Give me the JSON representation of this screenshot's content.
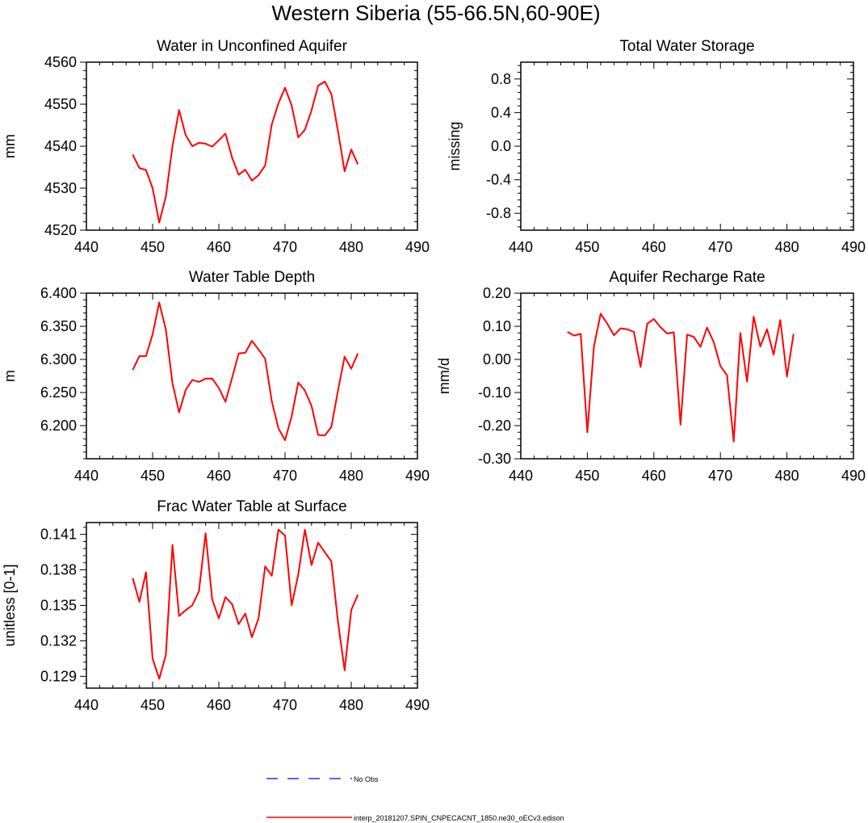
{
  "figure": {
    "title": "Western Siberia (55-66.5N,60-90E)"
  },
  "legend": {
    "items": [
      {
        "label": "No Obs",
        "color": "#0000ff",
        "style": "dashed"
      },
      {
        "label": "interp_20181207.SPIN_CNPECACNT_1850.ne30_oECv3.edison",
        "color": "#ff0000",
        "style": "solid"
      }
    ]
  },
  "colors": {
    "series": "#ff0000",
    "obs": "#0000ff",
    "axis": "#000000"
  },
  "chart_data": [
    {
      "type": "line",
      "title": "Water in Unconfined Aquifer",
      "xlabel": "",
      "ylabel": "mm",
      "xlim": [
        440,
        490
      ],
      "ylim": [
        4520,
        4560
      ],
      "xticks": [
        440,
        450,
        460,
        470,
        480,
        490
      ],
      "xtick_labels": [
        "440",
        "450",
        "460",
        "470",
        "480",
        "490"
      ],
      "yticks": [
        4520,
        4530,
        4540,
        4550,
        4560
      ],
      "ytick_labels": [
        "4520",
        "4530",
        "4540",
        "4550",
        "4560"
      ],
      "series": [
        {
          "x": [
            447,
            448,
            449,
            450,
            451,
            452,
            453,
            454,
            455,
            456,
            457,
            458,
            459,
            460,
            461,
            462,
            463,
            464,
            465,
            466,
            467,
            468,
            469,
            470,
            471,
            472,
            473,
            474,
            475,
            476,
            477,
            478,
            479,
            480,
            481
          ],
          "values": [
            4538.0,
            4534.8,
            4534.3,
            4530.0,
            4521.8,
            4528.0,
            4540.0,
            4548.6,
            4542.6,
            4540.0,
            4540.8,
            4540.6,
            4539.9,
            4541.4,
            4543.0,
            4537.3,
            4533.2,
            4534.4,
            4531.8,
            4533.1,
            4535.4,
            4545.2,
            4550.2,
            4553.9,
            4549.7,
            4542.1,
            4543.9,
            4548.5,
            4554.4,
            4555.4,
            4552.4,
            4543.6,
            4534.0,
            4539.2,
            4535.7
          ]
        }
      ]
    },
    {
      "type": "line",
      "title": "Total Water Storage",
      "xlabel": "",
      "ylabel": "missing",
      "xlim": [
        440,
        490
      ],
      "ylim": [
        -1.0,
        1.0
      ],
      "xticks": [
        440,
        450,
        460,
        470,
        480,
        490
      ],
      "xtick_labels": [
        "440",
        "450",
        "460",
        "470",
        "480",
        "490"
      ],
      "yticks": [
        -0.8,
        -0.4,
        0.0,
        0.4,
        0.8
      ],
      "ytick_labels": [
        "-0.8",
        "-0.4",
        "0.0",
        "0.4",
        "0.8"
      ],
      "series": []
    },
    {
      "type": "line",
      "title": "Water Table Depth",
      "xlabel": "",
      "ylabel": "m",
      "xlim": [
        440,
        490
      ],
      "ylim": [
        6.15,
        6.4
      ],
      "xticks": [
        440,
        450,
        460,
        470,
        480,
        490
      ],
      "xtick_labels": [
        "440",
        "450",
        "460",
        "470",
        "480",
        "490"
      ],
      "yticks": [
        6.2,
        6.25,
        6.3,
        6.35,
        6.4
      ],
      "ytick_labels": [
        "6.200",
        "6.250",
        "6.300",
        "6.350",
        "6.400"
      ],
      "series": [
        {
          "x": [
            447,
            448,
            449,
            450,
            451,
            452,
            453,
            454,
            455,
            456,
            457,
            458,
            459,
            460,
            461,
            462,
            463,
            464,
            465,
            466,
            467,
            468,
            469,
            470,
            471,
            472,
            473,
            474,
            475,
            476,
            477,
            478,
            479,
            480,
            481
          ],
          "values": [
            6.284,
            6.305,
            6.305,
            6.338,
            6.386,
            6.345,
            6.264,
            6.22,
            6.254,
            6.269,
            6.266,
            6.271,
            6.271,
            6.257,
            6.236,
            6.272,
            6.309,
            6.31,
            6.328,
            6.315,
            6.301,
            6.237,
            6.196,
            6.178,
            6.214,
            6.265,
            6.253,
            6.23,
            6.186,
            6.185,
            6.198,
            6.253,
            6.304,
            6.286,
            6.309
          ]
        }
      ]
    },
    {
      "type": "line",
      "title": "Aquifer Recharge Rate",
      "xlabel": "",
      "ylabel": "mm/d",
      "xlim": [
        440,
        490
      ],
      "ylim": [
        -0.3,
        0.2
      ],
      "xticks": [
        440,
        450,
        460,
        470,
        480,
        490
      ],
      "xtick_labels": [
        "440",
        "450",
        "460",
        "470",
        "480",
        "490"
      ],
      "yticks": [
        -0.3,
        -0.2,
        -0.1,
        0.0,
        0.1,
        0.2
      ],
      "ytick_labels": [
        "-0.30",
        "-0.20",
        "-0.10",
        "0.00",
        "0.10",
        "0.20"
      ],
      "series": [
        {
          "x": [
            447,
            448,
            449,
            450,
            451,
            452,
            453,
            454,
            455,
            456,
            457,
            458,
            459,
            460,
            461,
            462,
            463,
            464,
            465,
            466,
            467,
            468,
            469,
            470,
            471,
            472,
            473,
            474,
            475,
            476,
            477,
            478,
            479,
            480,
            481
          ],
          "values": [
            0.083,
            0.072,
            0.077,
            -0.22,
            0.04,
            0.138,
            0.108,
            0.073,
            0.094,
            0.091,
            0.083,
            -0.023,
            0.108,
            0.122,
            0.097,
            0.078,
            0.082,
            -0.197,
            0.075,
            0.068,
            0.038,
            0.096,
            0.052,
            -0.02,
            -0.048,
            -0.248,
            0.08,
            -0.067,
            0.129,
            0.039,
            0.091,
            0.014,
            0.119,
            -0.052,
            0.077
          ]
        }
      ]
    },
    {
      "type": "line",
      "title": "Frac Water Table at Surface",
      "xlabel": "",
      "ylabel": "unitless [0-1]",
      "xlim": [
        440,
        490
      ],
      "ylim": [
        0.128,
        0.142
      ],
      "xticks": [
        440,
        450,
        460,
        470,
        480,
        490
      ],
      "xtick_labels": [
        "440",
        "450",
        "460",
        "470",
        "480",
        "490"
      ],
      "yticks": [
        0.129,
        0.132,
        0.135,
        0.138,
        0.141
      ],
      "ytick_labels": [
        "0.129",
        "0.132",
        "0.135",
        "0.138",
        "0.141"
      ],
      "series": [
        {
          "x": [
            447,
            448,
            449,
            450,
            451,
            452,
            453,
            454,
            455,
            456,
            457,
            458,
            459,
            460,
            461,
            462,
            463,
            464,
            465,
            466,
            467,
            468,
            469,
            470,
            471,
            472,
            473,
            474,
            475,
            476,
            477,
            478,
            479,
            480,
            481
          ],
          "values": [
            0.1373,
            0.1353,
            0.1378,
            0.1305,
            0.1288,
            0.1308,
            0.1401,
            0.1341,
            0.1346,
            0.135,
            0.1362,
            0.1411,
            0.1355,
            0.1339,
            0.1357,
            0.1351,
            0.1334,
            0.1343,
            0.1323,
            0.1339,
            0.1383,
            0.1375,
            0.1414,
            0.1409,
            0.135,
            0.1376,
            0.1414,
            0.1384,
            0.1403,
            0.1395,
            0.1387,
            0.1336,
            0.1295,
            0.1346,
            0.1359
          ]
        }
      ]
    }
  ]
}
